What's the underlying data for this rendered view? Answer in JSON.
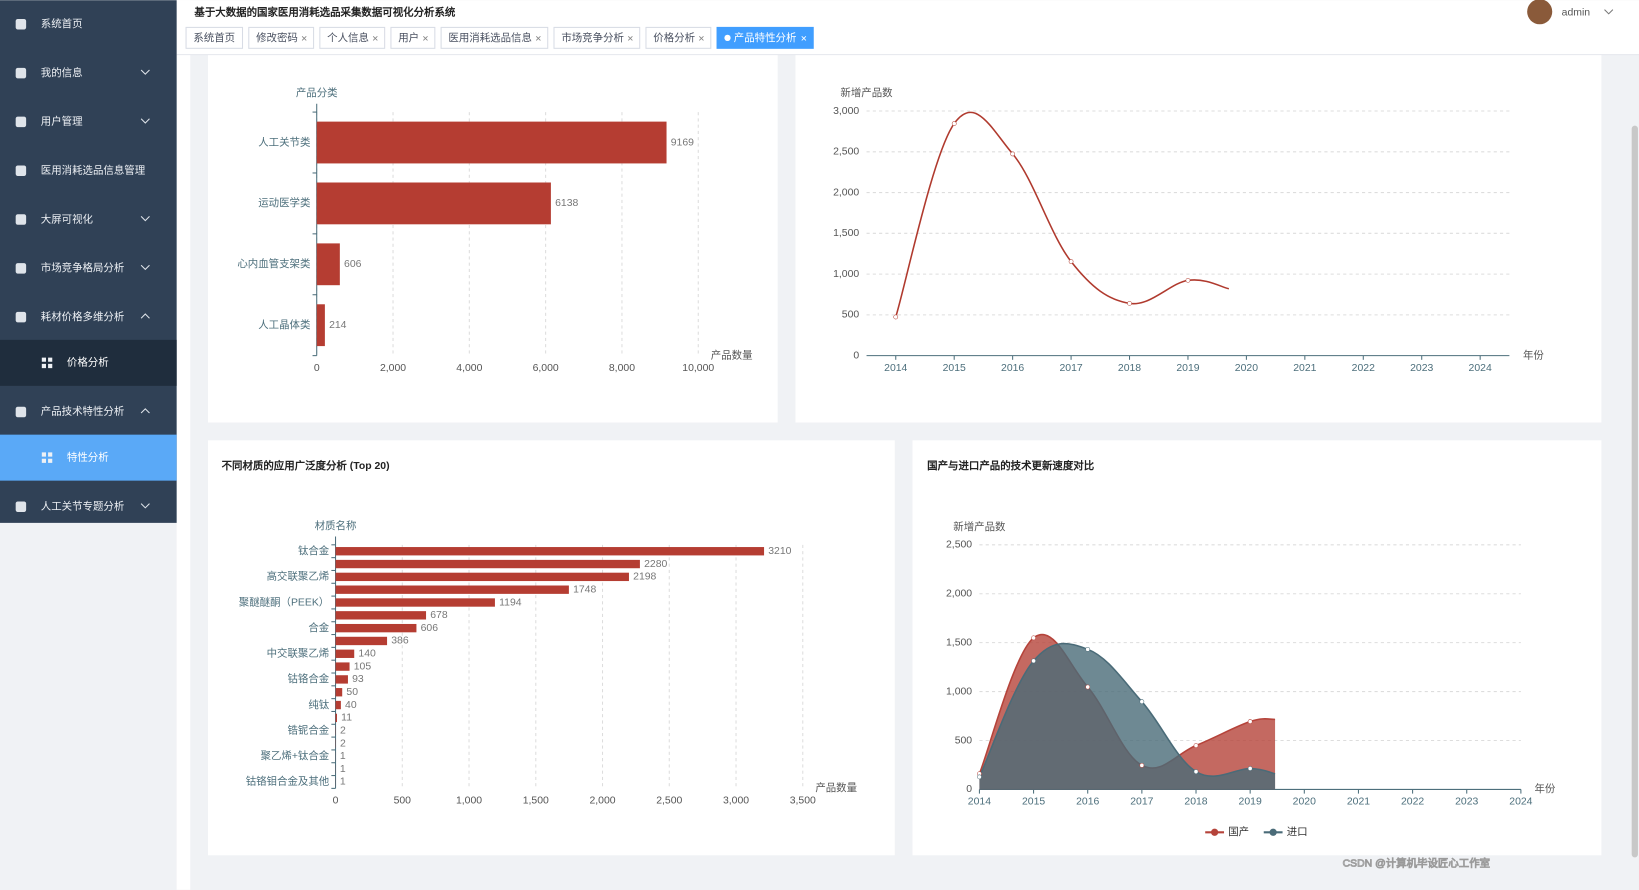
{
  "header": {
    "title": "基于大数据的国家医用消耗选品采集数据可视化分析系统",
    "user": "admin"
  },
  "tabs": [
    "系统首页",
    "修改密码",
    "个人信息",
    "用户",
    "医用消耗选品信息",
    "市场竞争分析",
    "价格分析",
    "产品特性分析"
  ],
  "sidebar": {
    "menu": [
      {
        "label": "系统首页"
      },
      {
        "label": "我的信息"
      },
      {
        "label": "用户管理"
      },
      {
        "label": "医用消耗选品信息管理"
      },
      {
        "label": "大屏可视化"
      },
      {
        "label": "市场竞争格局分析"
      },
      {
        "label": "耗材价格多维分析",
        "children": [
          "价格分析"
        ]
      },
      {
        "label": "产品技术特性分析",
        "children": [
          "特性分析"
        ]
      },
      {
        "label": "人工关节专题分析"
      }
    ]
  },
  "watermark": "CSDN @计算机毕设匠心工作室",
  "chart_data": [
    {
      "type": "hbar",
      "y_axis_label": "产品分类",
      "x_axis_label": "产品数量",
      "categories": [
        "人工关节类",
        "运动医学类",
        "心内血管支架类",
        "人工晶体类"
      ],
      "values": [
        9169,
        6138,
        606,
        214
      ],
      "color": "#b53d32",
      "xlim": [
        0,
        10000
      ],
      "xticks": [
        0,
        {
          "value": 2000,
          "label": "2,000"
        },
        {
          "value": 4000,
          "label": "4,000"
        },
        {
          "value": 6000,
          "label": "6,000"
        },
        {
          "value": 8000,
          "label": "8,000"
        },
        {
          "value": 10000,
          "label": "10,000"
        }
      ],
      "grid": true
    },
    {
      "type": "line",
      "y_axis_label": "新增产品数",
      "x_axis_label": "年份",
      "x": [
        2014,
        2015,
        2016,
        2017,
        2018,
        2019,
        2019.7
      ],
      "values": [
        474,
        2846,
        2474,
        1154,
        641,
        923,
        820
      ],
      "color": "#b03a2e",
      "xlim": [
        2013.5,
        2024.5
      ],
      "xticks": [
        2014,
        2015,
        2016,
        2017,
        2018,
        2019,
        2020,
        2021,
        2022,
        2023,
        2024
      ],
      "ylim": [
        0,
        3000
      ],
      "yticks": [
        0,
        500,
        {
          "value": 1000,
          "label": "1,000"
        },
        {
          "value": 1500,
          "label": "1,500"
        },
        {
          "value": 2000,
          "label": "2,000"
        },
        {
          "value": 2500,
          "label": "2,500"
        },
        {
          "value": 3000,
          "label": "3,000"
        }
      ],
      "grid": true
    },
    {
      "type": "hbar",
      "title": "不同材质的应用广泛度分析 (Top 20)",
      "y_axis_label": "材质名称",
      "x_axis_label": "产品数量",
      "categories": [
        "钛合金",
        null,
        "高交联聚乙烯",
        null,
        "聚醚醚酮（PEEK）",
        null,
        "合金",
        null,
        "中交联聚乙烯",
        null,
        "钴铬合金",
        null,
        "纯钛",
        null,
        "锆铌合金",
        null,
        "聚乙烯+钛合金",
        null,
        "钴铬钼合金及其他"
      ],
      "values": [
        3210,
        2280,
        2198,
        1748,
        1194,
        678,
        606,
        386,
        140,
        105,
        93,
        50,
        40,
        11,
        2,
        2,
        1,
        1,
        1
      ],
      "color": "#b53d32",
      "xlim": [
        0,
        3500
      ],
      "xticks": [
        0,
        500,
        {
          "value": 1000,
          "label": "1,000"
        },
        {
          "value": 1500,
          "label": "1,500"
        },
        {
          "value": 2000,
          "label": "2,000"
        },
        {
          "value": 2500,
          "label": "2,500"
        },
        {
          "value": 3000,
          "label": "3,000"
        },
        {
          "value": 3500,
          "label": "3,500"
        }
      ],
      "grid": true
    },
    {
      "type": "area",
      "title": "国产与进口产品的技术更新速度对比",
      "y_axis_label": "新增产品数",
      "x_axis_label": "年份",
      "x": [
        2014,
        2015,
        2016,
        2017,
        2018,
        2019,
        2019.46
      ],
      "series": [
        {
          "name": "国产",
          "color": "#b5433a",
          "values": [
            160,
            1549,
            1047,
            246,
            449,
            694,
            716
          ]
        },
        {
          "name": "进口",
          "color": "#4a6b78",
          "values": [
            128,
            1314,
            1432,
            897,
            182,
            214,
            160
          ]
        }
      ],
      "xlim": [
        2014,
        2024
      ],
      "xticks": [
        2014,
        2015,
        2016,
        2017,
        2018,
        2019,
        2020,
        2021,
        2022,
        2023,
        2024
      ],
      "ylim": [
        0,
        2500
      ],
      "yticks": [
        0,
        500,
        {
          "value": 1000,
          "label": "1,000"
        },
        {
          "value": 1500,
          "label": "1,500"
        },
        {
          "value": 2000,
          "label": "2,000"
        },
        {
          "value": 2500,
          "label": "2,500"
        }
      ],
      "grid": true,
      "legend": "bottom"
    }
  ]
}
